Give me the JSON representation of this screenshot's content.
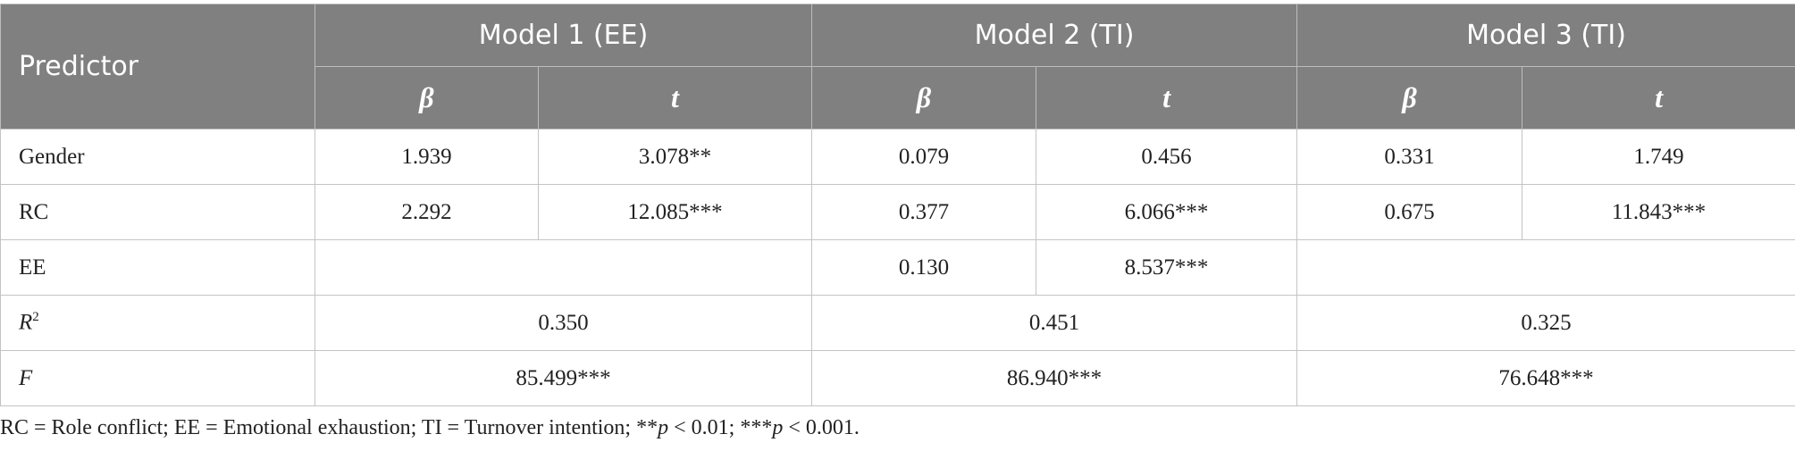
{
  "table": {
    "header": {
      "predictor": "Predictor",
      "models": [
        "Model 1 (EE)",
        "Model 2 (TI)",
        "Model 3 (TI)"
      ],
      "sub": [
        "β",
        "t",
        "β",
        "t",
        "β",
        "t"
      ]
    },
    "rows": [
      {
        "label": "Gender",
        "cells": [
          "1.939",
          "3.078**",
          "0.079",
          "0.456",
          "0.331",
          "1.749"
        ]
      },
      {
        "label": "RC",
        "cells": [
          "2.292",
          "12.085***",
          "0.377",
          "6.066***",
          "0.675",
          "11.843***"
        ]
      },
      {
        "label": "EE",
        "cells": [
          "0.130",
          "8.537***"
        ]
      },
      {
        "label": "R",
        "sup": "2",
        "cells": [
          "0.350",
          "0.451",
          "0.325"
        ]
      },
      {
        "label": "F",
        "cells": [
          "85.499***",
          "86.940***",
          "76.648***"
        ]
      }
    ]
  },
  "footnote": [
    "RC = Role conflict; EE = Emotional exhaustion; TI = Turnover intention; **",
    "p",
    " < 0.01; ***",
    "p",
    " < 0.001."
  ]
}
